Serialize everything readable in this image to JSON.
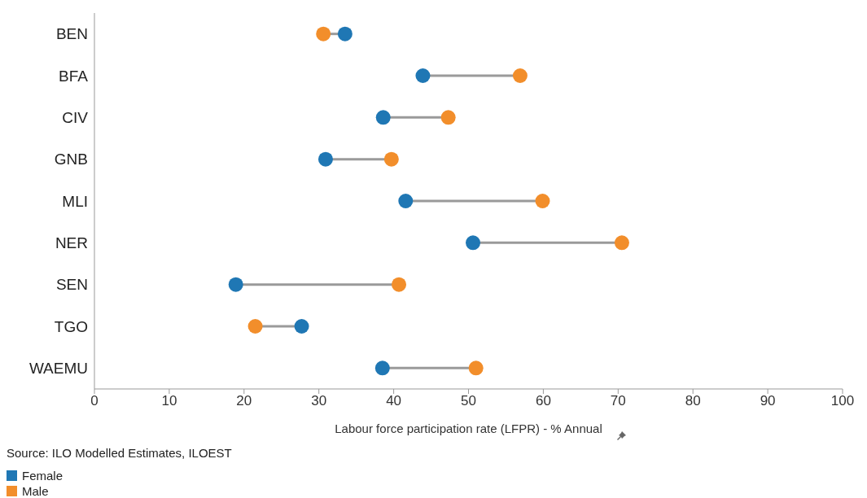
{
  "chart_data": {
    "type": "scatter",
    "orientation": "horizontal",
    "categories": [
      "BEN",
      "BFA",
      "CIV",
      "GNB",
      "MLI",
      "NER",
      "SEN",
      "TGO",
      "WAEMU"
    ],
    "series": [
      {
        "name": "Female",
        "color": "#1f77b4",
        "values": [
          33.5,
          43.9,
          38.6,
          30.9,
          41.6,
          50.6,
          18.9,
          27.7,
          38.5
        ]
      },
      {
        "name": "Male",
        "color": "#f28e2b",
        "values": [
          30.6,
          56.9,
          47.3,
          39.7,
          59.9,
          70.5,
          40.7,
          21.5,
          51.0
        ]
      }
    ],
    "xlim": [
      0,
      100
    ],
    "xticks": [
      0,
      10,
      20,
      30,
      40,
      50,
      60,
      70,
      80,
      90,
      100
    ],
    "xlabel": "Labour force participation rate (LFPR) - % Annual",
    "annotations": [
      "Source: ILO Modelled Estimates, ILOEST"
    ],
    "legend": "bottom",
    "grid": false,
    "marker": "circle"
  }
}
